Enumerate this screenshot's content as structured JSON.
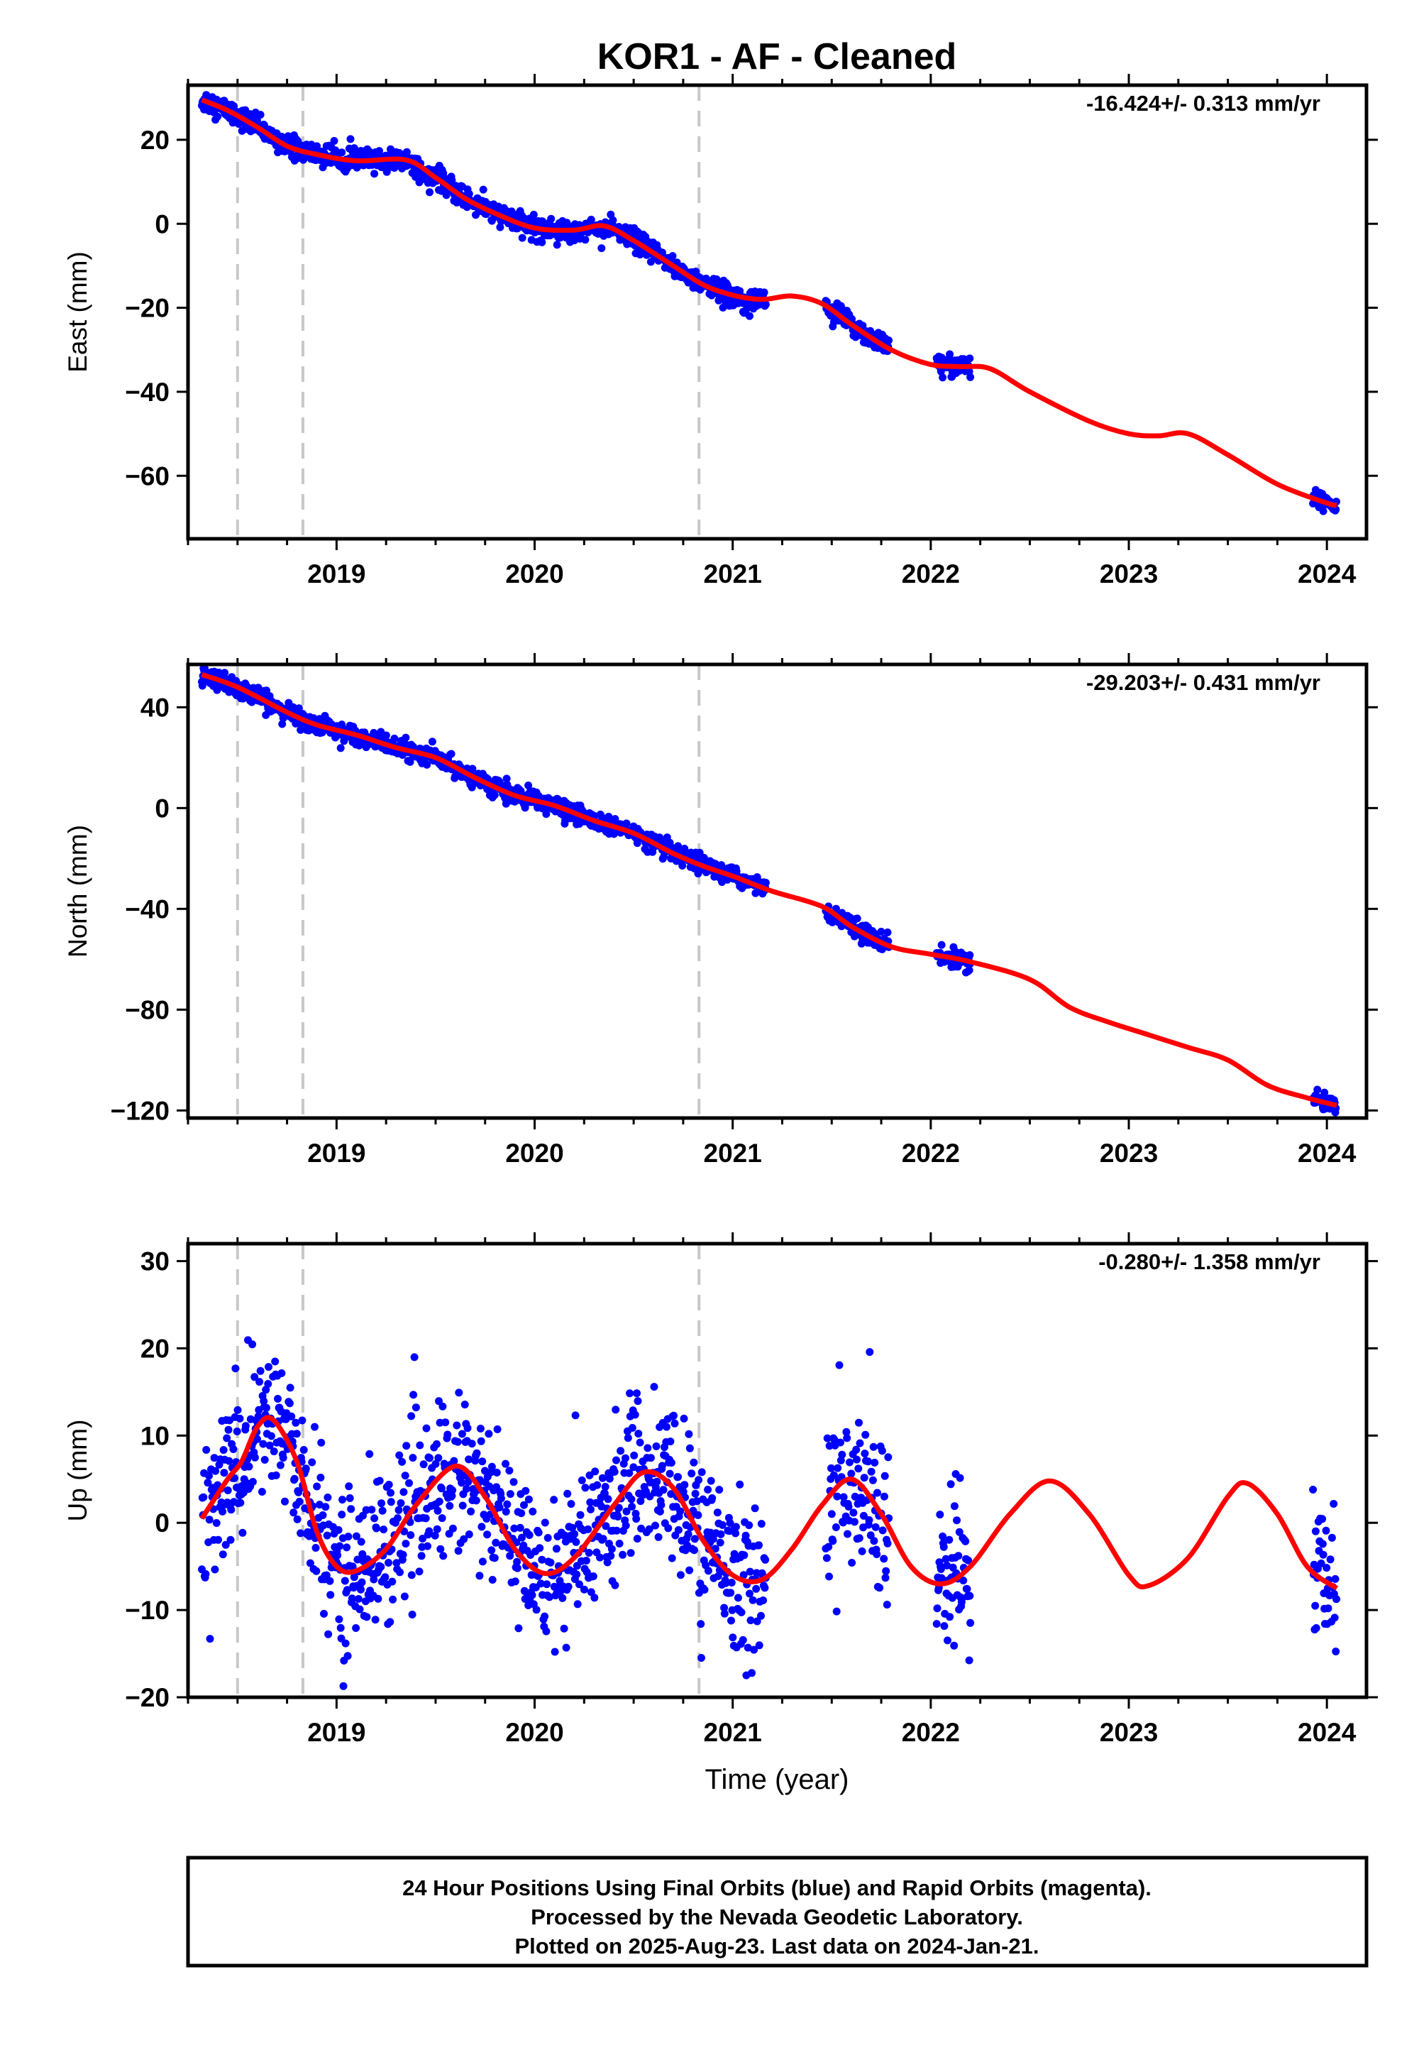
{
  "title": "KOR1  - AF - Cleaned",
  "xlabel": "Time (year)",
  "footer": {
    "line1": "24 Hour Positions Using Final Orbits (blue) and Rapid Orbits (magenta).",
    "line2": "Processed by the Nevada Geodetic Laboratory.",
    "line3": "Plotted on 2025-Aug-23. Last data on 2024-Jan-21."
  },
  "colors": {
    "points": "#0000ff",
    "fit": "#ff0000",
    "dashed": "#c8c8c8",
    "axis": "#000000"
  },
  "chart_data": [
    {
      "type": "scatter",
      "component": "east",
      "ylabel": "East (mm)",
      "rate": "-16.424+/- 0.313 mm/yr",
      "xlim": [
        2018.25,
        2024.2
      ],
      "ylim": [
        -75,
        33
      ],
      "yticks": [
        20,
        0,
        -20,
        -40,
        -60
      ],
      "xticks": [
        2019,
        2020,
        2021,
        2022,
        2023,
        2024
      ],
      "vlines": [
        2018.5,
        2018.83,
        2020.83
      ],
      "data_segments": [
        [
          2018.32,
          2021.17
        ],
        [
          2021.47,
          2021.79
        ],
        [
          2022.03,
          2022.2
        ],
        [
          2023.93,
          2024.05
        ]
      ],
      "fit": [
        [
          2018.32,
          29.5
        ],
        [
          2018.45,
          27
        ],
        [
          2018.6,
          23
        ],
        [
          2018.75,
          18.5
        ],
        [
          2018.9,
          16.5
        ],
        [
          2019.1,
          15
        ],
        [
          2019.35,
          15.2
        ],
        [
          2019.5,
          11
        ],
        [
          2019.65,
          6
        ],
        [
          2019.8,
          2.5
        ],
        [
          2020.0,
          -1
        ],
        [
          2020.2,
          -1.5
        ],
        [
          2020.35,
          -0.5
        ],
        [
          2020.5,
          -4
        ],
        [
          2020.7,
          -10
        ],
        [
          2020.85,
          -14.5
        ],
        [
          2021.0,
          -17
        ],
        [
          2021.15,
          -18
        ],
        [
          2021.3,
          -17.2
        ],
        [
          2021.45,
          -19
        ],
        [
          2021.6,
          -24
        ],
        [
          2021.8,
          -30
        ],
        [
          2022.0,
          -33.5
        ],
        [
          2022.15,
          -34
        ],
        [
          2022.3,
          -34.5
        ],
        [
          2022.5,
          -40
        ],
        [
          2022.8,
          -47
        ],
        [
          2023.0,
          -50
        ],
        [
          2023.15,
          -50.5
        ],
        [
          2023.3,
          -50
        ],
        [
          2023.5,
          -55
        ],
        [
          2023.75,
          -62
        ],
        [
          2024.0,
          -66.5
        ],
        [
          2024.05,
          -67
        ]
      ],
      "noise_mm": 1.3
    },
    {
      "type": "scatter",
      "component": "north",
      "ylabel": "North (mm)",
      "rate": "-29.203+/- 0.431 mm/yr",
      "xlim": [
        2018.25,
        2024.2
      ],
      "ylim": [
        -123,
        57
      ],
      "yticks": [
        40,
        0,
        -40,
        -80,
        -120
      ],
      "xticks": [
        2019,
        2020,
        2021,
        2022,
        2023,
        2024
      ],
      "vlines": [
        2018.5,
        2018.83,
        2020.83
      ],
      "data_segments": [
        [
          2018.32,
          2021.17
        ],
        [
          2021.47,
          2021.79
        ],
        [
          2022.03,
          2022.2
        ],
        [
          2023.93,
          2024.05
        ]
      ],
      "fit": [
        [
          2018.32,
          53
        ],
        [
          2018.5,
          48
        ],
        [
          2018.75,
          38
        ],
        [
          2018.9,
          33
        ],
        [
          2019.1,
          29
        ],
        [
          2019.3,
          24
        ],
        [
          2019.5,
          20
        ],
        [
          2019.7,
          12
        ],
        [
          2019.9,
          5
        ],
        [
          2020.1,
          1
        ],
        [
          2020.3,
          -5
        ],
        [
          2020.5,
          -10
        ],
        [
          2020.7,
          -18
        ],
        [
          2020.85,
          -23
        ],
        [
          2021.0,
          -27
        ],
        [
          2021.2,
          -33
        ],
        [
          2021.45,
          -39
        ],
        [
          2021.6,
          -47
        ],
        [
          2021.8,
          -55
        ],
        [
          2022.0,
          -58
        ],
        [
          2022.2,
          -61
        ],
        [
          2022.5,
          -68
        ],
        [
          2022.7,
          -79
        ],
        [
          2022.9,
          -85
        ],
        [
          2023.1,
          -90
        ],
        [
          2023.3,
          -95
        ],
        [
          2023.5,
          -100
        ],
        [
          2023.7,
          -110
        ],
        [
          2023.9,
          -115
        ],
        [
          2024.05,
          -118
        ]
      ],
      "noise_mm": 1.8
    },
    {
      "type": "scatter",
      "component": "up",
      "ylabel": "Up (mm)",
      "rate": "-0.280+/- 1.358 mm/yr",
      "xlim": [
        2018.25,
        2024.2
      ],
      "ylim": [
        -20,
        32
      ],
      "yticks": [
        30,
        20,
        10,
        0,
        -10,
        -20
      ],
      "xticks": [
        2019,
        2020,
        2021,
        2022,
        2023,
        2024
      ],
      "vlines": [
        2018.5,
        2018.83,
        2020.83
      ],
      "data_segments": [
        [
          2018.32,
          2021.17
        ],
        [
          2021.47,
          2021.79
        ],
        [
          2022.03,
          2022.2
        ],
        [
          2023.93,
          2024.05
        ]
      ],
      "fit": [
        [
          2018.32,
          0.5
        ],
        [
          2018.45,
          5
        ],
        [
          2018.52,
          7
        ],
        [
          2018.6,
          11
        ],
        [
          2018.68,
          11.8
        ],
        [
          2018.8,
          7
        ],
        [
          2018.9,
          -1
        ],
        [
          2019.0,
          -5
        ],
        [
          2019.1,
          -5.5
        ],
        [
          2019.25,
          -3
        ],
        [
          2019.4,
          2
        ],
        [
          2019.6,
          6.5
        ],
        [
          2019.75,
          3
        ],
        [
          2019.9,
          -3
        ],
        [
          2020.05,
          -5.8
        ],
        [
          2020.2,
          -4
        ],
        [
          2020.4,
          2
        ],
        [
          2020.55,
          5.8
        ],
        [
          2020.7,
          4
        ],
        [
          2020.85,
          -2
        ],
        [
          2021.0,
          -6
        ],
        [
          2021.15,
          -6.5
        ],
        [
          2021.3,
          -3
        ],
        [
          2021.45,
          2
        ],
        [
          2021.6,
          5
        ],
        [
          2021.75,
          1
        ],
        [
          2021.9,
          -5
        ],
        [
          2022.05,
          -7
        ],
        [
          2022.2,
          -5
        ],
        [
          2022.4,
          1
        ],
        [
          2022.6,
          4.8
        ],
        [
          2022.8,
          1
        ],
        [
          2023.0,
          -6
        ],
        [
          2023.1,
          -7.2
        ],
        [
          2023.3,
          -4
        ],
        [
          2023.5,
          3
        ],
        [
          2023.6,
          4.5
        ],
        [
          2023.75,
          1
        ],
        [
          2023.9,
          -5
        ],
        [
          2024.05,
          -7.5
        ]
      ],
      "noise_mm": 4.5
    }
  ]
}
